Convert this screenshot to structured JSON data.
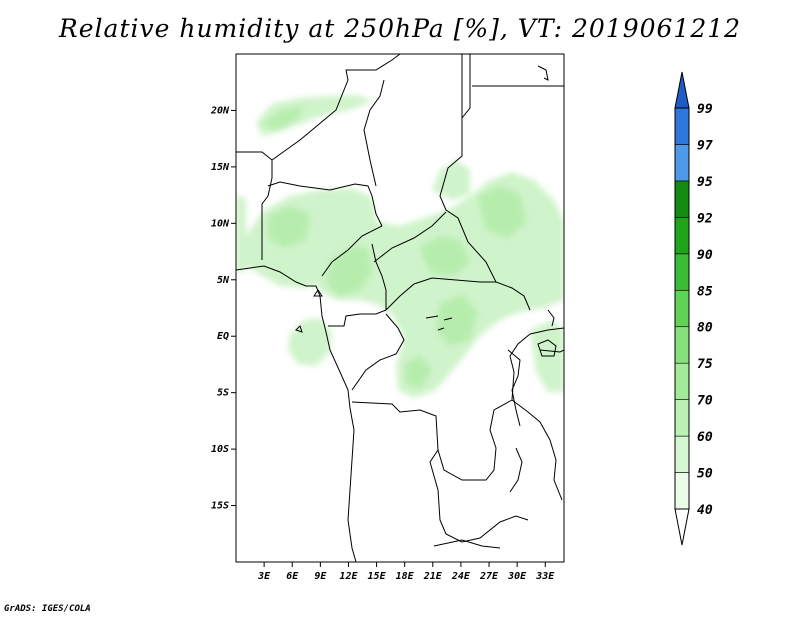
{
  "title": "Relative humidity at 250hPa [%], VT: 2019061212",
  "credit": "GrADS: IGES/COLA",
  "map": {
    "projection": "lat-lon",
    "lon_range": [
      0,
      35
    ],
    "lat_range": [
      -20,
      25
    ],
    "lat_ticks": [
      "20N",
      "15N",
      "10N",
      "5N",
      "EQ",
      "5S",
      "10S",
      "15S"
    ],
    "lon_ticks": [
      "3E",
      "6E",
      "9E",
      "12E",
      "15E",
      "18E",
      "21E",
      "24E",
      "27E",
      "30E",
      "33E"
    ],
    "field": "relative humidity at 250hPa",
    "humid_regions": [
      "Sahel band near 20N, 2E-12E",
      "West/Central Africa between 3N and 12N, 3E-35E",
      "Congo basin and Gabon, 5S-3N, 5E-28E",
      "Sudan/Ethiopia area 10N-15N, 25E-33E"
    ]
  },
  "colorbar": {
    "labels": [
      "40",
      "50",
      "60",
      "70",
      "75",
      "80",
      "85",
      "90",
      "92",
      "95",
      "97",
      "99"
    ],
    "colors": [
      "#ffffff",
      "#eafbe8",
      "#d4f6d0",
      "#bcf1b6",
      "#a2ea9a",
      "#86e07c",
      "#62d257",
      "#3cbc36",
      "#20a41c",
      "#138a10",
      "#4f9ae8",
      "#2d78d8",
      "#1d5cc4"
    ]
  }
}
